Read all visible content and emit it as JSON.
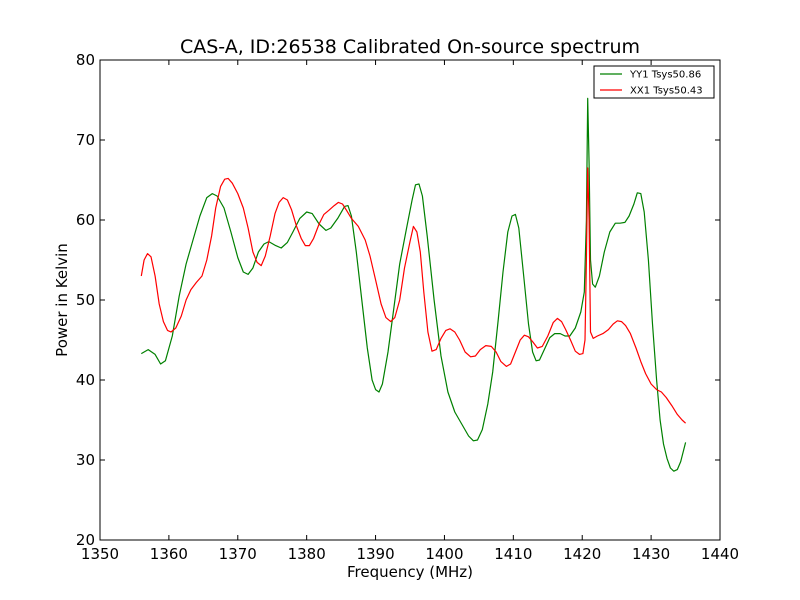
{
  "chart_data": {
    "type": "line",
    "title": "CAS-A, ID:26538 Calibrated On-source spectrum",
    "xlabel": "Frequency (MHz)",
    "ylabel": "Power in Kelvin",
    "xlim": [
      1350,
      1440
    ],
    "ylim": [
      20,
      80
    ],
    "xticks": [
      "1350",
      "1360",
      "1370",
      "1380",
      "1390",
      "1400",
      "1410",
      "1420",
      "1430",
      "1440"
    ],
    "yticks": [
      "20",
      "30",
      "40",
      "50",
      "60",
      "70",
      "80"
    ],
    "grid": false,
    "legend_position": "top-right",
    "series": [
      {
        "name": "YY1 Tsys50.86",
        "color": "#008000",
        "points": [
          [
            1356.0,
            43.3
          ],
          [
            1357.0,
            43.8
          ],
          [
            1358.0,
            43.2
          ],
          [
            1358.8,
            42.0
          ],
          [
            1359.5,
            42.4
          ],
          [
            1360.5,
            45.5
          ],
          [
            1361.5,
            50.5
          ],
          [
            1362.5,
            54.5
          ],
          [
            1363.5,
            57.5
          ],
          [
            1364.5,
            60.5
          ],
          [
            1365.5,
            62.8
          ],
          [
            1366.3,
            63.3
          ],
          [
            1367.0,
            63.0
          ],
          [
            1368.0,
            61.5
          ],
          [
            1369.0,
            58.5
          ],
          [
            1370.0,
            55.3
          ],
          [
            1370.8,
            53.5
          ],
          [
            1371.5,
            53.2
          ],
          [
            1372.2,
            54.0
          ],
          [
            1373.0,
            56.0
          ],
          [
            1373.8,
            57.0
          ],
          [
            1374.5,
            57.3
          ],
          [
            1375.5,
            56.8
          ],
          [
            1376.3,
            56.5
          ],
          [
            1377.2,
            57.2
          ],
          [
            1378.0,
            58.5
          ],
          [
            1379.0,
            60.2
          ],
          [
            1380.0,
            61.0
          ],
          [
            1380.8,
            60.8
          ],
          [
            1381.8,
            59.5
          ],
          [
            1382.8,
            58.7
          ],
          [
            1383.5,
            59.0
          ],
          [
            1384.5,
            60.2
          ],
          [
            1385.5,
            61.7
          ],
          [
            1386.0,
            61.8
          ],
          [
            1386.5,
            60.5
          ],
          [
            1387.2,
            56.0
          ],
          [
            1388.0,
            50.0
          ],
          [
            1388.8,
            44.0
          ],
          [
            1389.5,
            40.0
          ],
          [
            1390.0,
            38.8
          ],
          [
            1390.5,
            38.5
          ],
          [
            1391.0,
            39.5
          ],
          [
            1391.8,
            43.5
          ],
          [
            1392.5,
            48.0
          ],
          [
            1393.5,
            54.5
          ],
          [
            1394.5,
            59.0
          ],
          [
            1395.3,
            62.5
          ],
          [
            1395.8,
            64.4
          ],
          [
            1396.3,
            64.5
          ],
          [
            1396.8,
            63.0
          ],
          [
            1397.5,
            58.0
          ],
          [
            1398.5,
            50.0
          ],
          [
            1399.5,
            43.0
          ],
          [
            1400.5,
            38.5
          ],
          [
            1401.5,
            36.0
          ],
          [
            1402.5,
            34.5
          ],
          [
            1403.5,
            33.0
          ],
          [
            1404.2,
            32.4
          ],
          [
            1404.8,
            32.5
          ],
          [
            1405.5,
            33.8
          ],
          [
            1406.3,
            37.0
          ],
          [
            1407.0,
            41.0
          ],
          [
            1407.8,
            47.5
          ],
          [
            1408.5,
            53.5
          ],
          [
            1409.2,
            58.5
          ],
          [
            1409.8,
            60.5
          ],
          [
            1410.3,
            60.7
          ],
          [
            1410.8,
            59.0
          ],
          [
            1411.5,
            53.0
          ],
          [
            1412.2,
            47.0
          ],
          [
            1412.8,
            43.5
          ],
          [
            1413.3,
            42.4
          ],
          [
            1413.8,
            42.5
          ],
          [
            1414.5,
            43.8
          ],
          [
            1415.3,
            45.3
          ],
          [
            1416.0,
            45.8
          ],
          [
            1416.8,
            45.8
          ],
          [
            1417.5,
            45.5
          ],
          [
            1418.2,
            45.5
          ],
          [
            1419.0,
            46.5
          ],
          [
            1419.8,
            48.5
          ],
          [
            1420.3,
            51.0
          ],
          [
            1420.6,
            60.0
          ],
          [
            1420.8,
            75.2
          ],
          [
            1421.0,
            67.0
          ],
          [
            1421.2,
            55.0
          ],
          [
            1421.5,
            52.0
          ],
          [
            1421.9,
            51.6
          ],
          [
            1422.5,
            53.0
          ],
          [
            1423.2,
            56.0
          ],
          [
            1424.0,
            58.5
          ],
          [
            1424.8,
            59.6
          ],
          [
            1425.5,
            59.6
          ],
          [
            1426.2,
            59.7
          ],
          [
            1426.8,
            60.5
          ],
          [
            1427.5,
            62.0
          ],
          [
            1428.0,
            63.4
          ],
          [
            1428.5,
            63.3
          ],
          [
            1429.0,
            61.0
          ],
          [
            1429.6,
            55.0
          ],
          [
            1430.2,
            47.0
          ],
          [
            1430.8,
            40.0
          ],
          [
            1431.3,
            35.0
          ],
          [
            1431.8,
            32.0
          ],
          [
            1432.3,
            30.2
          ],
          [
            1432.8,
            29.0
          ],
          [
            1433.3,
            28.6
          ],
          [
            1433.8,
            28.8
          ],
          [
            1434.3,
            29.8
          ],
          [
            1435.0,
            32.2
          ]
        ]
      },
      {
        "name": "XX1 Tsys50.43",
        "color": "#ff0000",
        "points": [
          [
            1356.0,
            53.0
          ],
          [
            1356.4,
            55.0
          ],
          [
            1356.9,
            55.8
          ],
          [
            1357.4,
            55.4
          ],
          [
            1358.0,
            53.0
          ],
          [
            1358.6,
            49.5
          ],
          [
            1359.2,
            47.3
          ],
          [
            1359.8,
            46.2
          ],
          [
            1360.3,
            46.0
          ],
          [
            1361.0,
            46.5
          ],
          [
            1361.8,
            48.0
          ],
          [
            1362.5,
            50.0
          ],
          [
            1363.2,
            51.3
          ],
          [
            1364.0,
            52.2
          ],
          [
            1364.8,
            53.0
          ],
          [
            1365.5,
            55.0
          ],
          [
            1366.2,
            58.0
          ],
          [
            1366.8,
            61.5
          ],
          [
            1367.5,
            64.2
          ],
          [
            1368.1,
            65.1
          ],
          [
            1368.6,
            65.2
          ],
          [
            1369.2,
            64.6
          ],
          [
            1370.0,
            63.3
          ],
          [
            1370.8,
            61.5
          ],
          [
            1371.5,
            59.0
          ],
          [
            1372.2,
            56.0
          ],
          [
            1372.8,
            54.7
          ],
          [
            1373.4,
            54.3
          ],
          [
            1374.0,
            55.5
          ],
          [
            1374.7,
            58.0
          ],
          [
            1375.4,
            60.8
          ],
          [
            1376.0,
            62.2
          ],
          [
            1376.6,
            62.8
          ],
          [
            1377.2,
            62.5
          ],
          [
            1377.8,
            61.3
          ],
          [
            1378.5,
            59.3
          ],
          [
            1379.2,
            57.7
          ],
          [
            1379.8,
            56.8
          ],
          [
            1380.4,
            56.8
          ],
          [
            1381.0,
            57.7
          ],
          [
            1381.8,
            59.5
          ],
          [
            1382.5,
            60.7
          ],
          [
            1383.2,
            61.2
          ],
          [
            1384.0,
            61.8
          ],
          [
            1384.6,
            62.2
          ],
          [
            1385.2,
            62.0
          ],
          [
            1385.8,
            61.2
          ],
          [
            1386.5,
            60.2
          ],
          [
            1387.5,
            59.2
          ],
          [
            1388.5,
            57.5
          ],
          [
            1389.2,
            55.5
          ],
          [
            1390.0,
            52.5
          ],
          [
            1390.8,
            49.5
          ],
          [
            1391.5,
            47.8
          ],
          [
            1392.2,
            47.3
          ],
          [
            1392.8,
            47.8
          ],
          [
            1393.5,
            50.0
          ],
          [
            1394.2,
            54.0
          ],
          [
            1395.0,
            57.3
          ],
          [
            1395.5,
            59.2
          ],
          [
            1396.0,
            58.5
          ],
          [
            1396.5,
            56.0
          ],
          [
            1397.0,
            51.0
          ],
          [
            1397.6,
            46.0
          ],
          [
            1398.2,
            43.6
          ],
          [
            1398.8,
            43.8
          ],
          [
            1399.5,
            45.2
          ],
          [
            1400.2,
            46.2
          ],
          [
            1400.8,
            46.4
          ],
          [
            1401.5,
            46.0
          ],
          [
            1402.2,
            45.0
          ],
          [
            1403.0,
            43.5
          ],
          [
            1403.8,
            42.9
          ],
          [
            1404.5,
            43.0
          ],
          [
            1405.2,
            43.8
          ],
          [
            1406.0,
            44.3
          ],
          [
            1406.8,
            44.2
          ],
          [
            1407.5,
            43.5
          ],
          [
            1408.2,
            42.3
          ],
          [
            1409.0,
            41.7
          ],
          [
            1409.6,
            42.0
          ],
          [
            1410.3,
            43.5
          ],
          [
            1411.0,
            45.0
          ],
          [
            1411.6,
            45.6
          ],
          [
            1412.2,
            45.4
          ],
          [
            1412.8,
            44.8
          ],
          [
            1413.5,
            44.0
          ],
          [
            1414.2,
            44.2
          ],
          [
            1415.0,
            45.5
          ],
          [
            1415.8,
            47.2
          ],
          [
            1416.4,
            47.7
          ],
          [
            1417.0,
            47.3
          ],
          [
            1417.6,
            46.3
          ],
          [
            1418.3,
            45.0
          ],
          [
            1419.0,
            43.6
          ],
          [
            1419.6,
            43.2
          ],
          [
            1420.1,
            43.3
          ],
          [
            1420.4,
            45.0
          ],
          [
            1420.6,
            55.0
          ],
          [
            1420.8,
            66.5
          ],
          [
            1421.0,
            60.0
          ],
          [
            1421.2,
            46.0
          ],
          [
            1421.6,
            45.2
          ],
          [
            1422.2,
            45.5
          ],
          [
            1423.0,
            45.8
          ],
          [
            1423.8,
            46.3
          ],
          [
            1424.5,
            47.0
          ],
          [
            1425.1,
            47.4
          ],
          [
            1425.7,
            47.3
          ],
          [
            1426.3,
            46.8
          ],
          [
            1427.0,
            45.8
          ],
          [
            1427.8,
            44.0
          ],
          [
            1428.5,
            42.3
          ],
          [
            1429.2,
            40.8
          ],
          [
            1430.0,
            39.5
          ],
          [
            1430.8,
            38.8
          ],
          [
            1431.5,
            38.5
          ],
          [
            1432.2,
            37.8
          ],
          [
            1433.0,
            36.8
          ],
          [
            1433.8,
            35.7
          ],
          [
            1434.5,
            35.0
          ],
          [
            1435.0,
            34.6
          ]
        ]
      }
    ]
  }
}
